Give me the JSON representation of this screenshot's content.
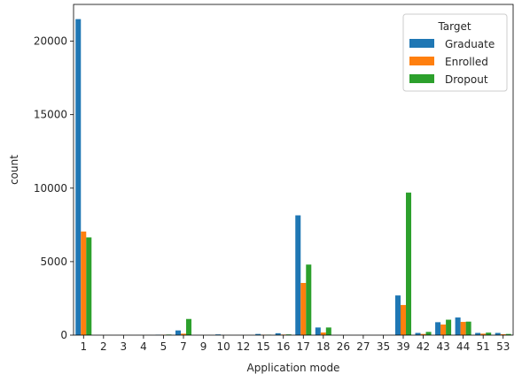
{
  "chart_data": {
    "type": "bar",
    "xlabel": "Application mode",
    "ylabel": "count",
    "ylim": [
      0,
      22500
    ],
    "yticks": [
      0,
      5000,
      10000,
      15000,
      20000
    ],
    "categories": [
      "1",
      "2",
      "3",
      "4",
      "5",
      "7",
      "9",
      "10",
      "12",
      "15",
      "16",
      "17",
      "18",
      "26",
      "27",
      "35",
      "39",
      "42",
      "43",
      "44",
      "51",
      "53"
    ],
    "series": [
      {
        "name": "Graduate",
        "color": "#1f77b4",
        "values": [
          21500,
          5,
          5,
          5,
          30,
          320,
          5,
          50,
          5,
          80,
          130,
          8150,
          520,
          5,
          5,
          5,
          2700,
          150,
          880,
          1200,
          150,
          150
        ]
      },
      {
        "name": "Enrolled",
        "color": "#ff7f0e",
        "values": [
          7050,
          5,
          5,
          5,
          30,
          100,
          5,
          5,
          5,
          30,
          40,
          3550,
          180,
          5,
          5,
          5,
          2050,
          80,
          720,
          900,
          100,
          60
        ]
      },
      {
        "name": "Dropout",
        "color": "#2ca02c",
        "values": [
          6650,
          5,
          5,
          5,
          40,
          1100,
          5,
          5,
          5,
          30,
          50,
          4800,
          520,
          5,
          5,
          5,
          9700,
          220,
          1050,
          920,
          170,
          80
        ]
      }
    ],
    "legend": {
      "title": "Target",
      "position": "top-right"
    },
    "grid": false
  }
}
